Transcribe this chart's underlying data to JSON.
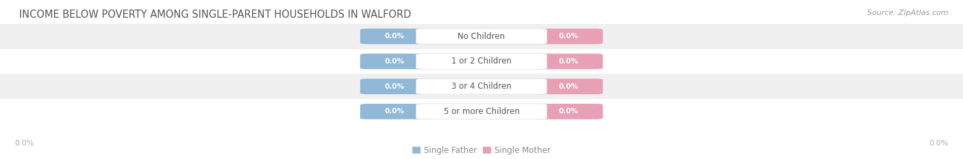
{
  "title": "INCOME BELOW POVERTY AMONG SINGLE-PARENT HOUSEHOLDS IN WALFORD",
  "source": "Source: ZipAtlas.com",
  "categories": [
    "No Children",
    "1 or 2 Children",
    "3 or 4 Children",
    "5 or more Children"
  ],
  "single_father_values": [
    0.0,
    0.0,
    0.0,
    0.0
  ],
  "single_mother_values": [
    0.0,
    0.0,
    0.0,
    0.0
  ],
  "father_color": "#92b8d8",
  "mother_color": "#e8a0b4",
  "row_bg_color": "#f0f0f0",
  "row_alt_bg_color": "#ffffff",
  "label_bg_color": "#ffffff",
  "title_color": "#555555",
  "source_color": "#999999",
  "axis_label_color": "#aaaaaa",
  "category_text_color": "#555555",
  "value_text_color": "#ffffff",
  "legend_text_color": "#888888",
  "title_fontsize": 10.5,
  "source_fontsize": 8,
  "category_fontsize": 8.5,
  "value_fontsize": 7.5,
  "axis_fontsize": 8,
  "legend_fontsize": 8.5,
  "axis_label": "0.0%",
  "legend_father": "Single Father",
  "legend_mother": "Single Mother",
  "background_color": "#ffffff"
}
